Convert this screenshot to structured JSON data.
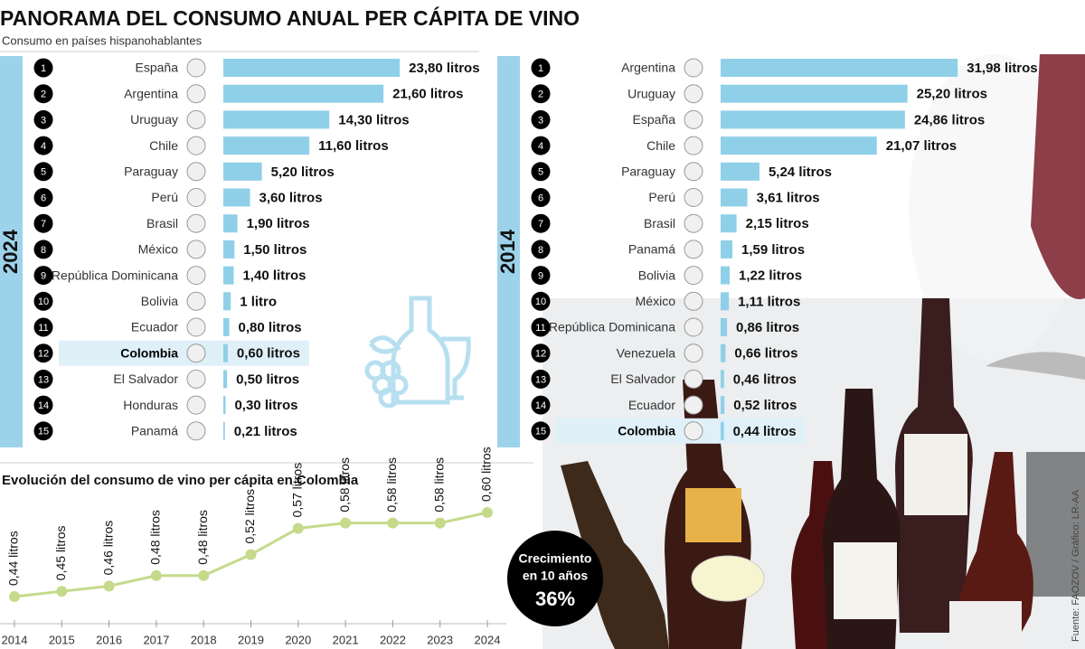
{
  "title": "PANORAMA DEL CONSUMO ANUAL PER CÁPITA DE VINO",
  "subtitle": "Consumo en países hispanohablantes",
  "badge": {
    "line1": "Crecimiento",
    "line2": "en 10 años",
    "value": "36%"
  },
  "source": "Fuente: FAOZOV / Gráfico: LR-AA",
  "chart_data": [
    {
      "type": "bar",
      "orientation": "horizontal",
      "label": "2024",
      "ranks": [
        1,
        2,
        3,
        4,
        5,
        6,
        7,
        8,
        9,
        10,
        11,
        12,
        13,
        14,
        15
      ],
      "categories": [
        "España",
        "Argentina",
        "Uruguay",
        "Chile",
        "Paraguay",
        "Perú",
        "Brasil",
        "México",
        "República Dominicana",
        "Bolivia",
        "Ecuador",
        "Colombia",
        "El Salvador",
        "Honduras",
        "Panamá"
      ],
      "values": [
        23.8,
        21.6,
        14.3,
        11.6,
        5.2,
        3.6,
        1.9,
        1.5,
        1.4,
        1,
        0.8,
        0.6,
        0.5,
        0.3,
        0.21
      ],
      "value_labels": [
        "23,80 litros",
        "21,60 litros",
        "14,30 litros",
        "11,60 litros",
        "5,20 litros",
        "3,60 litros",
        "1,90 litros",
        "1,50 litros",
        "1,40 litros",
        "1 litro",
        "0,80 litros",
        "0,60 litros",
        "0,50 litros",
        "0,30 litros",
        "0,21 litros"
      ],
      "color": "#8fd0e8",
      "highlight_index": 11
    },
    {
      "type": "bar",
      "orientation": "horizontal",
      "label": "2014",
      "ranks": [
        1,
        2,
        3,
        4,
        5,
        6,
        7,
        8,
        9,
        10,
        11,
        12,
        13,
        14,
        15
      ],
      "categories": [
        "Argentina",
        "Uruguay",
        "España",
        "Chile",
        "Paraguay",
        "Perú",
        "Brasil",
        "Panamá",
        "Bolivia",
        "México",
        "República Dominicana",
        "Venezuela",
        "El Salvador",
        "Ecuador",
        "Colombia"
      ],
      "values": [
        31.98,
        25.2,
        24.86,
        21.07,
        5.24,
        3.61,
        2.15,
        1.59,
        1.22,
        1.11,
        0.86,
        0.66,
        0.46,
        0.52,
        0.44
      ],
      "value_labels": [
        "31,98 litros",
        "25,20 litros",
        "24,86 litros",
        "21,07 litros",
        "5,24 litros",
        "3,61 litros",
        "2,15 litros",
        "1,59 litros",
        "1,22 litros",
        "1,11 litros",
        "0,86 litros",
        "0,66 litros",
        "0,46 litros",
        "0,52 litros",
        "0,44 litros"
      ],
      "color": "#8fd0e8",
      "highlight_index": 14
    },
    {
      "type": "line",
      "title": "Evolución del consumo de vino per cápita en Colombia",
      "x": [
        2014,
        2015,
        2016,
        2017,
        2018,
        2019,
        2020,
        2021,
        2022,
        2023,
        2024
      ],
      "values": [
        0.44,
        0.45,
        0.46,
        0.48,
        0.48,
        0.52,
        0.57,
        0.58,
        0.58,
        0.58,
        0.6
      ],
      "value_labels": [
        "0,44 litros",
        "0,45 litros",
        "0,46 litros",
        "0,48 litros",
        "0,48 litros",
        "0,52 litros",
        "0,57 litros",
        "0,58 litros",
        "0,58 litros",
        "0,58 litros",
        "0,60 litros"
      ],
      "color": "#c5da8a"
    }
  ]
}
